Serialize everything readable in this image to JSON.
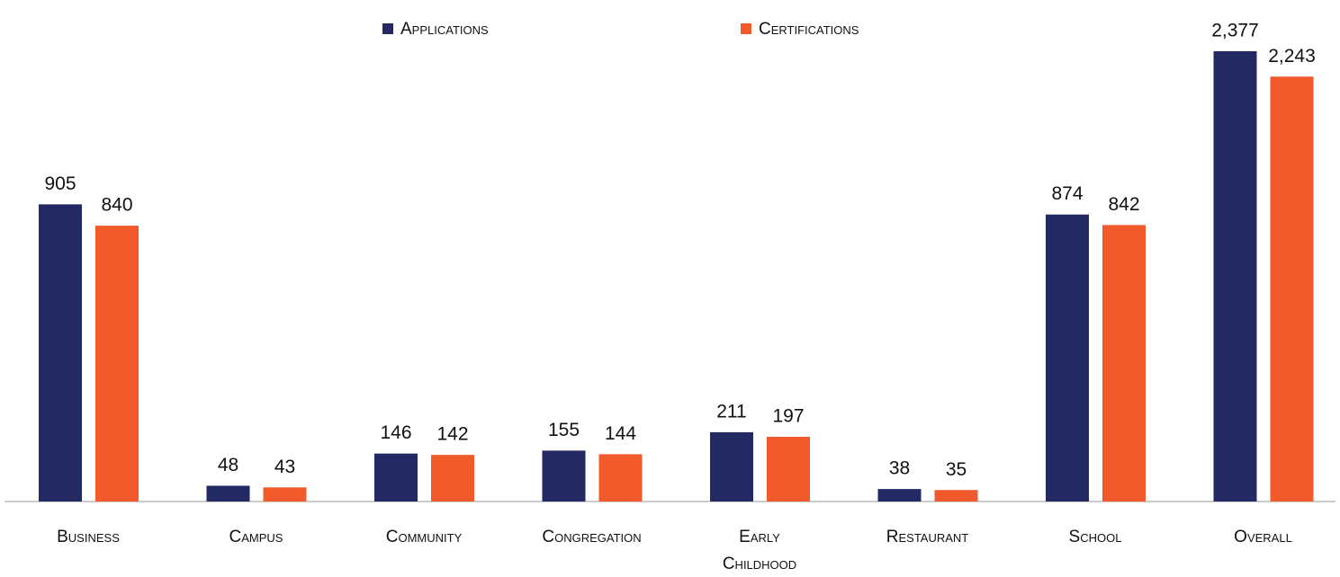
{
  "chart_data": {
    "type": "bar",
    "categories": [
      "Business",
      "Campus",
      "Community",
      "Congregation",
      "Early Childhood",
      "Restaurant",
      "School",
      "Overall"
    ],
    "series": [
      {
        "name": "Applications",
        "color": "#232a63",
        "values": [
          905,
          48,
          146,
          155,
          211,
          38,
          874,
          2377
        ],
        "value_labels": [
          "905",
          "48",
          "146",
          "155",
          "211",
          "38",
          "874",
          "2,377"
        ]
      },
      {
        "name": "Certifications",
        "color": "#f15a2b",
        "values": [
          840,
          43,
          142,
          144,
          197,
          35,
          842,
          2243
        ],
        "value_labels": [
          "840",
          "43",
          "142",
          "144",
          "197",
          "35",
          "842",
          "2,243"
        ]
      }
    ],
    "ylim": [
      0,
      1500
    ],
    "y2lim": [
      0,
      2600
    ],
    "axis_by_category": [
      "y",
      "y",
      "y",
      "y",
      "y",
      "y",
      "y",
      "y2"
    ],
    "legend": "top",
    "grid": false
  }
}
